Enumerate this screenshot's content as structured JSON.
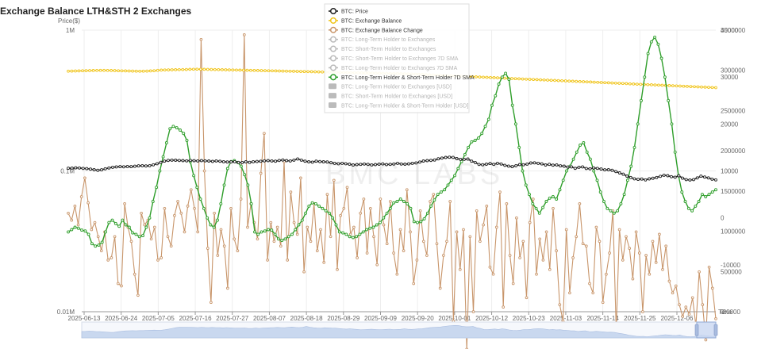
{
  "title": "Exchange Balance LTH&STH 2 Exchanges",
  "watermark": "BMC LABS",
  "colors": {
    "price": "#222222",
    "balance": "#f0c419",
    "change": "#c8956a",
    "sma": "#2e9e2a",
    "legend_disabled": "#bbbbbb",
    "grid": "#eeeeee",
    "slider_fill": "#c9d8ef"
  },
  "chart_data": {
    "type": "line",
    "x_ticks": [
      "2025-06-13",
      "2025-06-24",
      "2025-07-05",
      "2025-07-16",
      "2025-07-27",
      "2025-08-07",
      "2025-08-18",
      "2025-08-29",
      "2025-09-09",
      "2025-09-20",
      "2025-10-01",
      "2025-10-12",
      "2025-10-23",
      "2025-11-03",
      "2025-11-14",
      "2025-11-25",
      "2025-12-06"
    ],
    "x_axis_name": "Time",
    "y_left": {
      "name": "Price($)",
      "scale": "log",
      "ticks": [
        "1M",
        "0.1M",
        "0.01M"
      ],
      "range": [
        10000,
        1000000
      ]
    },
    "y_right1": {
      "ticks": [
        "3500000",
        "3000000",
        "2500000",
        "2000000",
        "1500000",
        "1000000",
        "500000",
        "0"
      ],
      "range": [
        0,
        3500000
      ]
    },
    "y_right2": {
      "ticks": [
        "40000",
        "30000",
        "20000",
        "10000",
        "0",
        "-10000",
        "-20000"
      ],
      "range": [
        -20000,
        40000
      ]
    },
    "legend": [
      {
        "label": "BTC: Price",
        "active": true,
        "color_key": "price"
      },
      {
        "label": "BTC: Exchange Balance",
        "active": true,
        "color_key": "balance"
      },
      {
        "label": "BTC: Exchange Balance Change",
        "active": true,
        "color_key": "change"
      },
      {
        "label": "BTC: Long-Term Holder to Exchanges",
        "active": false
      },
      {
        "label": "BTC: Short-Term Holder to Exchanges",
        "active": false
      },
      {
        "label": "BTC: Short-Term Holder to Exchanges 7D SMA",
        "active": false
      },
      {
        "label": "BTC: Long-Term Holder to Exchanges 7D SMA",
        "active": false
      },
      {
        "label": "BTC: Long-Term Holder & Short-Term Holder 7D SMA",
        "active": true,
        "color_key": "sma"
      },
      {
        "label": "BTC: Long-Term Holder to Exchanges [USD]",
        "active": false,
        "bar": true
      },
      {
        "label": "BTC: Short-Term Holder to Exchanges [USD]",
        "active": false,
        "bar": true
      },
      {
        "label": "BTC: Long-Term Holder & Short-Term Holder [USD]",
        "active": false,
        "bar": true
      }
    ],
    "series": [
      {
        "name": "BTC: Price",
        "axis": "left",
        "values": [
          104500,
          104800,
          105200,
          104900,
          104200,
          103800,
          103000,
          102000,
          101000,
          101800,
          103500,
          104900,
          106200,
          106900,
          107200,
          107000,
          107500,
          107300,
          108000,
          108600,
          109000,
          108500,
          108900,
          110500,
          112500,
          115000,
          117500,
          118900,
          119300,
          119100,
          118700,
          118300,
          117900,
          118600,
          118200,
          117700,
          118300,
          117900,
          117600,
          116900,
          117700,
          117100,
          116300,
          115800,
          115900,
          116200,
          114900,
          114700,
          116100,
          115100,
          116200,
          116700,
          117200,
          117900,
          118400,
          117800,
          117300,
          118600,
          119600,
          118300,
          117800,
          119300,
          121600,
          119300,
          117300,
          116100,
          115500,
          117300,
          116600,
          116100,
          115800,
          114500,
          113300,
          112600,
          113300,
          112600,
          111600,
          110200,
          110900,
          111400,
          112000,
          111300,
          110300,
          110900,
          111600,
          112200,
          111000,
          111300,
          111900,
          113300,
          112000,
          111600,
          112300,
          113300,
          114000,
          115700,
          117600,
          118300,
          118800,
          119600,
          121900,
          123400,
          124600,
          125200,
          124800,
          122300,
          120800,
          120900,
          121500,
          117300,
          114700,
          111200,
          110600,
          111700,
          113000,
          111300,
          113300,
          112000,
          109700,
          108300,
          107300,
          108900,
          110900,
          110700,
          111800,
          113800,
          114100,
          113300,
          112300,
          110200,
          111300,
          109900,
          110300,
          108700,
          108100,
          106600,
          106900,
          104400,
          106100,
          106800,
          104100,
          103600,
          105000,
          104200,
          103100,
          101800,
          102000,
          101000,
          99000,
          96800,
          94800,
          91900,
          89800,
          88000,
          87200,
          87600,
          86400,
          87800,
          88700,
          89800,
          91600,
          93200,
          92500,
          91000,
          90300,
          92400,
          88900,
          86800,
          86300,
          86800,
          89200,
          91800,
          90500,
          89200,
          87400,
          86400
        ]
      },
      {
        "name": "BTC: Exchange Balance",
        "axis": "right1",
        "values": [
          2990000,
          2991000,
          2992000,
          2993000,
          2995000,
          2996000,
          2997000,
          2998000,
          2999000,
          3000000,
          3000000,
          2999000,
          2998000,
          2997000,
          2995000,
          2994000,
          2993000,
          2992000,
          2991000,
          2990000,
          2989000,
          2990000,
          2991000,
          2993000,
          2995000,
          3000000,
          3003000,
          3005000,
          3006000,
          3007000,
          3008000,
          3009000,
          3010000,
          3011000,
          3013000,
          3014000,
          3015000,
          3014000,
          3013000,
          3012000,
          3011000,
          3010000,
          3009000,
          3008000,
          3007000,
          3006000,
          3005000,
          3004000,
          3003000,
          3002000,
          3001000,
          3000000,
          2999000,
          2998000,
          2997000,
          2996000,
          2995000,
          2994000,
          2993000,
          2992000,
          2991000,
          2990000,
          2989000,
          2988000,
          2987000,
          2986000,
          2985000,
          2984000,
          2983000,
          2982000,
          2981000,
          2980000,
          2979000,
          2978000,
          2977000,
          2976000,
          2975000,
          2974000,
          2973000,
          2972000,
          2971000,
          2970000,
          2969000,
          2968000,
          2967000,
          2966000,
          2965000,
          2964000,
          2963000,
          2962000,
          2961000,
          2960000,
          2959000,
          2958000,
          2957000,
          2956000,
          2955000,
          2953000,
          2951000,
          2949000,
          2947000,
          2945000,
          2943000,
          2941000,
          2939000,
          2937000,
          2935000,
          2933000,
          2931000,
          2929000,
          2927000,
          2925000,
          2923000,
          2921000,
          2919000,
          2917000,
          2915000,
          2913000,
          2911000,
          2909000,
          2907000,
          2905000,
          2903000,
          2901000,
          2899000,
          2897000,
          2895000,
          2893000,
          2891000,
          2889000,
          2887000,
          2885000,
          2883000,
          2881000,
          2879000,
          2877000,
          2875000,
          2873000,
          2871000,
          2869000,
          2867000,
          2865000,
          2863000,
          2861000,
          2859000,
          2857000,
          2855000,
          2853000,
          2851000,
          2849000,
          2847000,
          2845000,
          2843000,
          2841000,
          2839000,
          2837000,
          2835000,
          2833000,
          2831000,
          2829000,
          2827000,
          2825000,
          2823000,
          2821000,
          2819000,
          2817000,
          2815000,
          2813000,
          2811000,
          2809000,
          2807000,
          2805000,
          2803000,
          2801000,
          2799000,
          2797000,
          2795000,
          2793000,
          2791000,
          2789000,
          2787000,
          2785000
        ]
      },
      {
        "name": "BTC: Exchange Balance Change",
        "axis": "right2",
        "values": [
          1000,
          -500,
          2500,
          -1500,
          4500,
          8500,
          3200,
          -2500,
          -1000,
          -4000,
          -7000,
          -3000,
          -9000,
          -8500,
          -4000,
          -14000,
          -14500,
          3000,
          -2000,
          -5000,
          -12000,
          -16500,
          1000,
          -1500,
          -500,
          -4500,
          -2000,
          -9000,
          -8500,
          2000,
          -4000,
          -6000,
          500,
          3500,
          1000,
          -3000,
          2500,
          6000,
          2000,
          -3000,
          38000,
          10000,
          -6500,
          -18000,
          1000,
          -8000,
          -2500,
          -6000,
          -15000,
          2000,
          -4500,
          -7000,
          4000,
          39000,
          -2000,
          3000,
          -1000,
          -4500,
          9500,
          18000,
          -9000,
          -1000,
          -5000,
          -2000,
          -6000,
          12000,
          -9000,
          5500,
          -1000,
          -3500,
          8500,
          -11500,
          -2000,
          -5000,
          3000,
          -7000,
          -2500,
          -9500,
          5000,
          -4000,
          8000,
          -11000,
          500,
          2000,
          6500,
          -3500,
          -2000,
          -8500,
          1000,
          4000,
          -7500,
          2000,
          -4000,
          -10000,
          4000,
          -1500,
          -5500,
          3500,
          -7500,
          -12000,
          -2500,
          -7000,
          6000,
          -3000,
          -14000,
          -9000,
          1500,
          -5000,
          -8000,
          3500,
          5000,
          -5500,
          -15000,
          -8000,
          -5000,
          3500,
          -22000,
          -3000,
          -11000,
          -2500,
          -28000,
          -4000,
          -20000,
          1500,
          -5000,
          -1500,
          2500,
          -10500,
          -12000,
          -2000,
          5500,
          -19000,
          3000,
          -8000,
          -14000,
          0,
          -8500,
          -5000,
          -17000,
          -1000,
          4000,
          -12000,
          -4500,
          -9000,
          -3000,
          -11000,
          2000,
          -7000,
          -18500,
          -22000,
          -2500,
          -16000,
          -8500,
          -4000,
          3000,
          -5500,
          -6000,
          -14000,
          -16000,
          -2000,
          -5000,
          -18000,
          -12000,
          -7500,
          1500,
          -24000,
          -2500,
          -9000,
          -4000,
          -6500,
          -13000,
          -3000,
          -7500,
          -20000,
          -8000,
          -12000,
          -5000,
          -9500,
          -3500,
          -11000,
          -6000,
          -13500,
          -16000,
          -14500,
          -18500,
          -21000,
          -19000,
          -20500,
          -17000,
          -23000,
          -11500,
          -18500,
          -26000,
          -10500,
          -15000,
          -21500
        ]
      },
      {
        "name": "BTC: Long-Term Holder & Short-Term Holder 7D SMA",
        "axis": "right2",
        "values": [
          -3000,
          -2500,
          -2000,
          -2200,
          -2600,
          -2800,
          -3500,
          -5500,
          -6000,
          -5800,
          -5200,
          -3000,
          -1000,
          -500,
          -1200,
          -1800,
          -500,
          -1500,
          -2000,
          -3200,
          -3500,
          -4000,
          -3800,
          -2000,
          0,
          3500,
          6500,
          10000,
          13000,
          16000,
          19000,
          19500,
          19200,
          18700,
          18000,
          16500,
          12000,
          9000,
          6500,
          4000,
          2000,
          0,
          -1500,
          -2000,
          -500,
          3000,
          7000,
          10500,
          12000,
          12200,
          11800,
          11000,
          9200,
          7000,
          3000,
          -3000,
          -3500,
          -3000,
          -2800,
          -2500,
          -2600,
          -3500,
          -4500,
          -4800,
          -4500,
          -4000,
          -3500,
          -2500,
          -1500,
          -500,
          1000,
          2500,
          3200,
          3000,
          2500,
          2000,
          1500,
          1000,
          0,
          -1500,
          -3000,
          -3200,
          -3500,
          -4000,
          -4200,
          -4000,
          -3500,
          -3000,
          -2500,
          -2200,
          -2000,
          -1500,
          -1000,
          0,
          1000,
          2000,
          3200,
          3500,
          4000,
          3500,
          3000,
          2000,
          -800,
          -1000,
          -800,
          -200,
          1000,
          2500,
          3800,
          5000,
          5500,
          6000,
          7000,
          8000,
          9000,
          10500,
          12000,
          13500,
          15000,
          16200,
          16500,
          17000,
          18000,
          19500,
          21000,
          24000,
          26000,
          28500,
          30000,
          30800,
          29500,
          24000,
          20000,
          15000,
          10000,
          7000,
          5000,
          3000,
          2000,
          1000,
          2200,
          3500,
          4200,
          4500,
          4000,
          6000,
          8000,
          10000,
          11000,
          12500,
          14000,
          15500,
          16000,
          14000,
          12500,
          10000,
          8000,
          5500,
          3500,
          2000,
          1500,
          1000,
          1500,
          3000,
          5000,
          8000,
          11000,
          15000,
          20000,
          25000,
          30000,
          35000,
          37500,
          38500,
          37000,
          34000,
          30000,
          25000,
          20000,
          14000,
          9000,
          5500,
          3500,
          2000,
          1500,
          2500,
          3500,
          5000,
          4500,
          5000,
          5500,
          6000
        ]
      }
    ]
  }
}
